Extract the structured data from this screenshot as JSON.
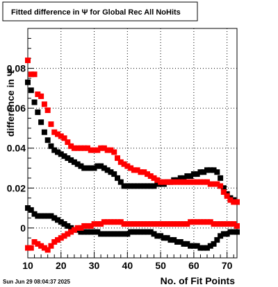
{
  "title": "Fitted difference in  Ψ  for Global Rec All NoHits",
  "timestamp": "Sun Jun 29 08:04:37 2025",
  "chart_data": {
    "type": "scatter",
    "title": "Fitted difference in  Ψ  for Global Rec All NoHits",
    "xlabel": "No. of Fit Points",
    "ylabel": "difference in  Ψ",
    "xlim": [
      10,
      73
    ],
    "ylim": [
      -0.015,
      0.1
    ],
    "grid": true,
    "x_ticks": [
      10,
      20,
      30,
      40,
      50,
      60,
      70
    ],
    "x_tick_labels": [
      "10",
      "20",
      "30",
      "40",
      "50",
      "60",
      "70"
    ],
    "y_ticks": [
      0,
      0.02,
      0.04,
      0.06,
      0.08
    ],
    "y_tick_labels": [
      "0",
      "0.02",
      "0.04",
      "0.06",
      "0.08"
    ],
    "series": [
      {
        "color": "#000000",
        "x": [
          10,
          11,
          12,
          13,
          14,
          15,
          16,
          17,
          18,
          19,
          20,
          21,
          22,
          23,
          24,
          25,
          26,
          27,
          28,
          29,
          30,
          31,
          32,
          33,
          34,
          35,
          36,
          37,
          38,
          39,
          40,
          41,
          42,
          43,
          44,
          45,
          46,
          47,
          48,
          49,
          50,
          51,
          52,
          53,
          54,
          55,
          56,
          57,
          58,
          59,
          60,
          61,
          62,
          63,
          64,
          65,
          66,
          67,
          68,
          69,
          70,
          71,
          72,
          73
        ],
        "y": [
          0.073,
          0.069,
          0.063,
          0.058,
          0.053,
          0.048,
          0.044,
          0.041,
          0.039,
          0.038,
          0.037,
          0.036,
          0.035,
          0.034,
          0.033,
          0.032,
          0.031,
          0.03,
          0.03,
          0.03,
          0.03,
          0.031,
          0.031,
          0.03,
          0.029,
          0.028,
          0.027,
          0.025,
          0.023,
          0.021,
          0.021,
          0.021,
          0.021,
          0.021,
          0.021,
          0.021,
          0.021,
          0.021,
          0.021,
          0.022,
          0.022,
          0.022,
          0.023,
          0.023,
          0.024,
          0.024,
          0.025,
          0.025,
          0.026,
          0.026,
          0.027,
          0.027,
          0.028,
          0.028,
          0.029,
          0.029,
          0.029,
          0.028,
          0.025,
          0.02,
          0.017,
          0.015,
          0.014,
          0.013
        ]
      },
      {
        "color": "#000000",
        "x": [
          10,
          11,
          12,
          13,
          14,
          15,
          16,
          17,
          18,
          19,
          20,
          21,
          22,
          23,
          24,
          25,
          26,
          27,
          28,
          29,
          30,
          31,
          32,
          33,
          34,
          35,
          36,
          37,
          38,
          39,
          40,
          41,
          42,
          43,
          44,
          45,
          46,
          47,
          48,
          49,
          50,
          51,
          52,
          53,
          54,
          55,
          56,
          57,
          58,
          59,
          60,
          61,
          62,
          63,
          64,
          65,
          66,
          67,
          68,
          69,
          70,
          71,
          72,
          73
        ],
        "y": [
          0.01,
          0.009,
          0.007,
          0.006,
          0.006,
          0.006,
          0.006,
          0.006,
          0.005,
          0.004,
          0.003,
          0.002,
          0.001,
          0.0,
          -0.001,
          -0.001,
          -0.002,
          -0.002,
          -0.002,
          -0.002,
          -0.002,
          -0.002,
          -0.003,
          -0.003,
          -0.003,
          -0.003,
          -0.003,
          -0.003,
          -0.003,
          -0.003,
          -0.003,
          -0.002,
          -0.002,
          -0.002,
          -0.002,
          -0.002,
          -0.002,
          -0.002,
          -0.003,
          -0.004,
          -0.004,
          -0.005,
          -0.005,
          -0.006,
          -0.006,
          -0.007,
          -0.007,
          -0.008,
          -0.008,
          -0.009,
          -0.009,
          -0.009,
          -0.01,
          -0.01,
          -0.01,
          -0.009,
          -0.008,
          -0.006,
          -0.004,
          -0.003,
          -0.003,
          -0.002,
          -0.002,
          -0.002
        ]
      },
      {
        "color": "#ff0000",
        "x": [
          10,
          11,
          12,
          13,
          14,
          15,
          16,
          17,
          18,
          19,
          20,
          21,
          22,
          23,
          24,
          25,
          26,
          27,
          28,
          29,
          30,
          31,
          32,
          33,
          34,
          35,
          36,
          37,
          38,
          39,
          40,
          41,
          42,
          43,
          44,
          45,
          46,
          47,
          48,
          49,
          50,
          51,
          52,
          53,
          54,
          55,
          56,
          57,
          58,
          59,
          60,
          61,
          62,
          63,
          64,
          65,
          66,
          67,
          68,
          69,
          70,
          71,
          72,
          73
        ],
        "y": [
          0.084,
          0.077,
          0.077,
          0.067,
          0.066,
          0.062,
          0.059,
          0.052,
          0.048,
          0.047,
          0.046,
          0.045,
          0.043,
          0.041,
          0.04,
          0.04,
          0.04,
          0.04,
          0.04,
          0.039,
          0.039,
          0.039,
          0.04,
          0.04,
          0.039,
          0.039,
          0.038,
          0.035,
          0.033,
          0.032,
          0.031,
          0.03,
          0.029,
          0.029,
          0.028,
          0.028,
          0.027,
          0.026,
          0.025,
          0.024,
          0.023,
          0.023,
          0.023,
          0.023,
          0.023,
          0.023,
          0.023,
          0.023,
          0.023,
          0.023,
          0.023,
          0.023,
          0.023,
          0.023,
          0.023,
          0.022,
          0.022,
          0.022,
          0.021,
          0.018,
          0.016,
          0.014,
          0.013,
          0.013
        ]
      },
      {
        "color": "#ff0000",
        "x": [
          10,
          11,
          12,
          13,
          14,
          15,
          16,
          17,
          18,
          19,
          20,
          21,
          22,
          23,
          24,
          25,
          26,
          27,
          28,
          29,
          30,
          31,
          32,
          33,
          34,
          35,
          36,
          37,
          38,
          39,
          40,
          41,
          42,
          43,
          44,
          45,
          46,
          47,
          48,
          49,
          50,
          51,
          52,
          53,
          54,
          55,
          56,
          57,
          58,
          59,
          60,
          61,
          62,
          63,
          64,
          65,
          66,
          67,
          68,
          69,
          70,
          71,
          72,
          73
        ],
        "y": [
          -0.01,
          -0.01,
          -0.007,
          -0.008,
          -0.009,
          -0.01,
          -0.011,
          -0.009,
          -0.007,
          -0.006,
          -0.005,
          -0.004,
          -0.003,
          -0.002,
          -0.001,
          0.0,
          0.0,
          0.001,
          0.001,
          0.001,
          0.002,
          0.002,
          0.002,
          0.003,
          0.003,
          0.003,
          0.003,
          0.003,
          0.003,
          0.002,
          0.002,
          0.002,
          0.002,
          0.002,
          0.002,
          0.002,
          0.002,
          0.002,
          0.002,
          0.002,
          0.002,
          0.002,
          0.002,
          0.002,
          0.002,
          0.002,
          0.002,
          0.002,
          0.002,
          0.003,
          0.003,
          0.003,
          0.003,
          0.003,
          0.003,
          0.003,
          0.002,
          0.002,
          0.002,
          0.002,
          0.002,
          0.002,
          0.002,
          0.001
        ]
      }
    ]
  }
}
